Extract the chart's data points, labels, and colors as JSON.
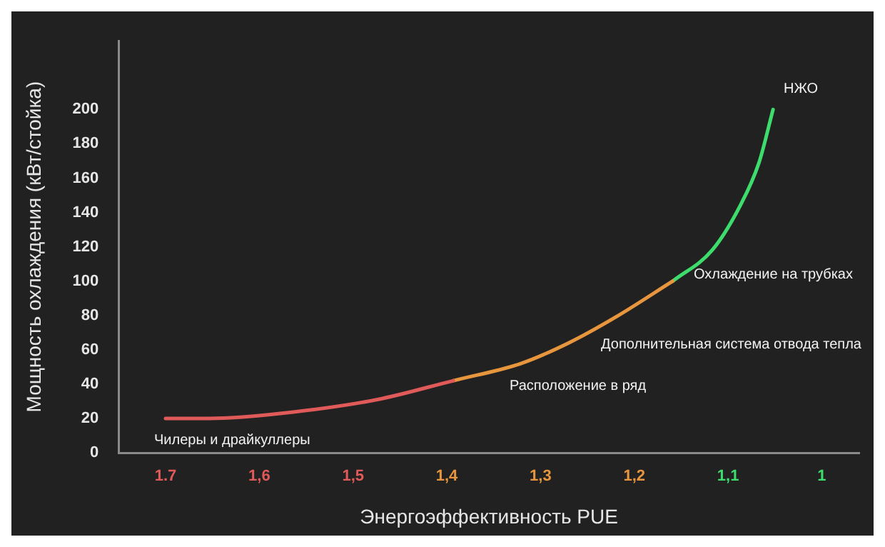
{
  "chart_data": {
    "type": "line",
    "xlabel": "Энергоэффективность PUE",
    "ylabel": "Мощность охлаждения (кВт/стойка)",
    "series": [
      {
        "x": [
          1.7,
          1.653,
          1.576,
          1.474,
          1.393
        ],
        "values": [
          20,
          20,
          23,
          31,
          42
        ],
        "color": "#e05a5a"
      },
      {
        "x": [
          1.393,
          1.321,
          1.27,
          1.22,
          1.159
        ],
        "values": [
          42,
          52,
          64,
          79,
          100
        ],
        "color": "#e8963e"
      },
      {
        "x": [
          1.159,
          1.117,
          1.087,
          1.067,
          1.052
        ],
        "values": [
          100,
          118,
          144,
          169,
          200
        ],
        "color": "#3ddc6c"
      }
    ],
    "xlim": [
      1.75,
      0.96
    ],
    "ylim": [
      0,
      240
    ],
    "xticks": [
      1.7,
      {
        "value": 1.6,
        "label": "1,6"
      },
      {
        "value": 1.5,
        "label": "1,5"
      },
      {
        "value": 1.4,
        "label": "1,4"
      },
      {
        "value": 1.3,
        "label": "1,3"
      },
      {
        "value": 1.2,
        "label": "1,2"
      },
      {
        "value": 1.1,
        "label": "1,1"
      },
      1
    ],
    "yticks": [
      0,
      20,
      40,
      60,
      80,
      100,
      120,
      140,
      160,
      180,
      200
    ],
    "marker": "none",
    "line_style": "solid",
    "annotations": [
      "Чилеры и драйкуллеры",
      "Расположение в ряд",
      "Дополнительная система отвода тепла",
      "Охлаждение на трубках",
      "НЖО"
    ]
  }
}
